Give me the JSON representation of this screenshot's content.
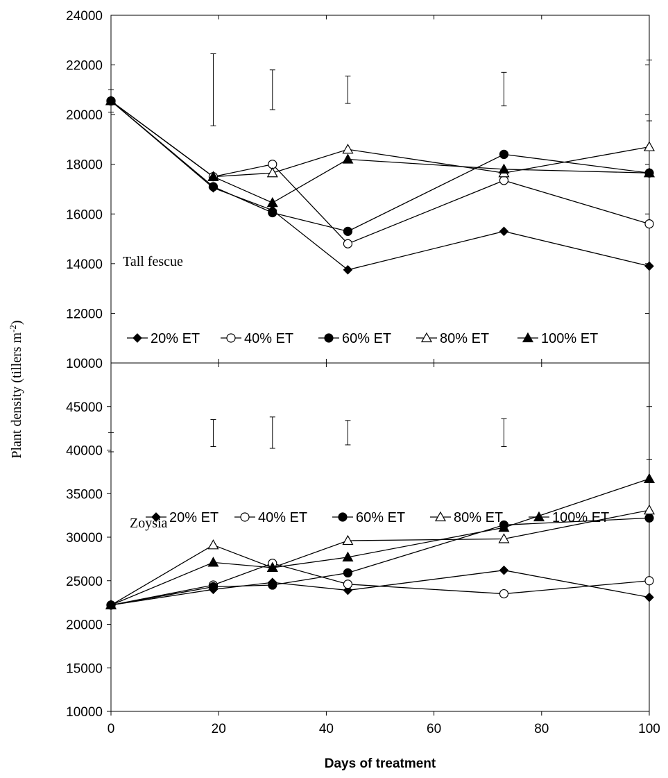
{
  "chart_data": [
    {
      "type": "line",
      "panel_label": "Tall fescue",
      "x": [
        0,
        19,
        30,
        44,
        73,
        100
      ],
      "xlim": [
        0,
        100
      ],
      "ylim": [
        10000,
        24000
      ],
      "yticks": [
        10000,
        12000,
        14000,
        16000,
        18000,
        20000,
        22000,
        24000
      ],
      "ytick_labels": [
        "10000",
        "12000",
        "14000",
        "16000",
        "18000",
        "20000",
        "22000",
        "24000"
      ],
      "legend_position": "bottom",
      "series": [
        {
          "name": "20% ET",
          "marker": "diamond-filled",
          "values": [
            20550,
            17050,
            16150,
            13750,
            15300,
            13900
          ]
        },
        {
          "name": "40% ET",
          "marker": "circle-open",
          "values": [
            20550,
            17500,
            18000,
            14800,
            17350,
            15600
          ]
        },
        {
          "name": "60% ET",
          "marker": "circle-filled",
          "values": [
            20550,
            17100,
            16050,
            15300,
            18400,
            17650
          ]
        },
        {
          "name": "80% ET",
          "marker": "triangle-open",
          "values": [
            20550,
            17500,
            17650,
            18600,
            17650,
            18700
          ]
        },
        {
          "name": "100% ET",
          "marker": "triangle-filled",
          "values": [
            20550,
            17500,
            16450,
            18200,
            17800,
            17650
          ]
        }
      ],
      "error_bars": [
        {
          "x": 0,
          "low": 20100,
          "high": 21000
        },
        {
          "x": 19,
          "low": 19550,
          "high": 22450
        },
        {
          "x": 30,
          "low": 20200,
          "high": 21800
        },
        {
          "x": 44,
          "low": 20450,
          "high": 21550
        },
        {
          "x": 73,
          "low": 20350,
          "high": 21700
        },
        {
          "x": 100,
          "low": 19750,
          "high": 22200
        }
      ]
    },
    {
      "type": "line",
      "panel_label": "Zoysia",
      "x": [
        0,
        19,
        30,
        44,
        73,
        100
      ],
      "xlim": [
        0,
        100
      ],
      "ylim": [
        10000,
        50000
      ],
      "yticks": [
        10000,
        15000,
        20000,
        25000,
        30000,
        35000,
        40000,
        45000
      ],
      "ytick_labels": [
        "10000",
        "15000",
        "20000",
        "25000",
        "30000",
        "35000",
        "40000",
        "45000"
      ],
      "xticks": [
        0,
        20,
        40,
        60,
        80,
        100
      ],
      "xtick_labels": [
        "0",
        "20",
        "40",
        "60",
        "80",
        "100"
      ],
      "legend_position": "bottom",
      "series": [
        {
          "name": "20% ET",
          "marker": "diamond-filled",
          "values": [
            22200,
            24000,
            24800,
            23900,
            26200,
            23100
          ]
        },
        {
          "name": "40% ET",
          "marker": "circle-open",
          "values": [
            22200,
            24500,
            27000,
            24600,
            23500,
            25000
          ]
        },
        {
          "name": "60% ET",
          "marker": "circle-filled",
          "values": [
            22200,
            24300,
            24500,
            25900,
            31400,
            32200
          ]
        },
        {
          "name": "80% ET",
          "marker": "triangle-open",
          "values": [
            22200,
            29100,
            26500,
            29600,
            29800,
            33100
          ]
        },
        {
          "name": "100% ET",
          "marker": "triangle-filled",
          "values": [
            22200,
            27100,
            26500,
            27700,
            31100,
            36700
          ]
        }
      ],
      "error_bars": [
        {
          "x": 0,
          "low": 39800,
          "high": 42000
        },
        {
          "x": 19,
          "low": 40400,
          "high": 43500
        },
        {
          "x": 30,
          "low": 40200,
          "high": 43800
        },
        {
          "x": 44,
          "low": 40600,
          "high": 43400
        },
        {
          "x": 73,
          "low": 40400,
          "high": 43600
        },
        {
          "x": 100,
          "low": 38900,
          "high": 45000
        }
      ]
    }
  ],
  "shared": {
    "xlabel": "Days of treatment",
    "ylabel": "Plant density  (tillers m",
    "ylabel_sup": "-2",
    "ylabel_close": ")"
  }
}
